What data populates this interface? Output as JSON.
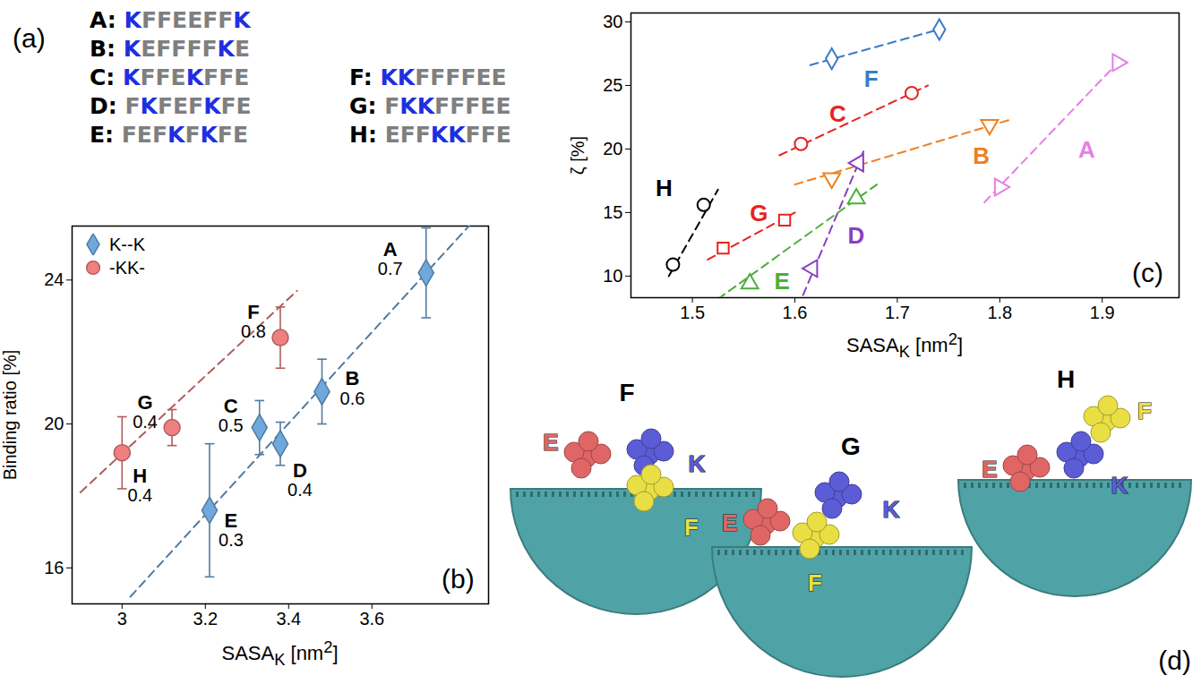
{
  "panel_a": {
    "label": "(a)",
    "highlight": "K",
    "highlight_color": "#1f2fe0",
    "base_color": "#7f7f7f",
    "columns": [
      [
        {
          "label": "A:",
          "sequence": "KFFEEFFK"
        },
        {
          "label": "B:",
          "sequence": "KEFFFFKE"
        },
        {
          "label": "C:",
          "sequence": "KFFEKFFE"
        },
        {
          "label": "D:",
          "sequence": "FKFEFKFE"
        },
        {
          "label": "E:",
          "sequence": "FEFKFKFE"
        }
      ],
      [
        {
          "label": "F:",
          "sequence": "KKFFFFEE"
        },
        {
          "label": "G:",
          "sequence": "FKKFFFEE"
        },
        {
          "label": "H:",
          "sequence": "EFFKKFFE"
        }
      ]
    ]
  },
  "chart_data": [
    {
      "type": "scatter",
      "panel_label": "(b)",
      "xlabel": [
        "SASA",
        {
          "sub": "K"
        },
        " [nm",
        {
          "sup": "2"
        },
        "]"
      ],
      "ylabel": "Binding ratio [%]",
      "xlim": [
        2.88,
        3.88
      ],
      "xticks": [
        3,
        3.2,
        3.4,
        3.6
      ],
      "ylim": [
        15,
        25.5
      ],
      "yticks": [
        16,
        20,
        24
      ],
      "legend": "top-left",
      "series": [
        {
          "name": "K--K",
          "color": "#6fa8dc",
          "marker": "diamond",
          "line_style": "dashed",
          "x": [
            3.21,
            3.33,
            3.38,
            3.48,
            3.73
          ],
          "values": [
            17.6,
            19.9,
            19.45,
            20.9,
            24.2
          ],
          "errors": [
            1.85,
            0.75,
            0.6,
            0.9,
            1.25
          ],
          "point_labels": [
            "E",
            "C",
            "D",
            "B",
            "A"
          ],
          "point_numbers": [
            0.3,
            0.5,
            0.4,
            0.6,
            0.7
          ],
          "fit": {
            "x": [
              3.02,
              3.88
            ],
            "y": [
              15.2,
              26.1
            ]
          }
        },
        {
          "name": "-KK-",
          "color": "#f08080",
          "marker": "circle",
          "line_style": "dashed",
          "x": [
            3.0,
            3.12,
            3.38
          ],
          "values": [
            19.2,
            19.9,
            22.4
          ],
          "errors": [
            1.0,
            0.5,
            0.85
          ],
          "point_labels": [
            "H",
            "G",
            "F"
          ],
          "point_numbers": [
            0.4,
            0.4,
            0.8
          ],
          "fit": {
            "x": [
              2.9,
              3.42
            ],
            "y": [
              18.1,
              23.7
            ]
          }
        }
      ]
    },
    {
      "type": "scatter",
      "panel_label": "(c)",
      "xlabel": [
        "SASA",
        {
          "sub": "K"
        },
        " [nm",
        {
          "sup": "2"
        },
        "]"
      ],
      "ylabel": "ζ [%]",
      "xlim": [
        1.44,
        1.975
      ],
      "xticks": [
        1.5,
        1.6,
        1.7,
        1.8,
        1.9
      ],
      "ylim": [
        8.3,
        30.7
      ],
      "yticks": [
        10,
        15,
        20,
        25,
        30
      ],
      "series": [
        {
          "name": "A",
          "color": "#e67ee6",
          "marker": "triangle-right-open",
          "line_style": "dashed",
          "x": [
            1.8,
            1.915
          ],
          "values": [
            17.0,
            26.8
          ],
          "fit": {
            "x": [
              1.785,
              1.92
            ],
            "y": [
              15.8,
              27.2
            ]
          }
        },
        {
          "name": "B",
          "color": "#f07f1e",
          "marker": "triangle-down-open",
          "line_style": "dashed",
          "x": [
            1.636,
            1.79
          ],
          "values": [
            17.7,
            21.9
          ],
          "fit": {
            "x": [
              1.6,
              1.81
            ],
            "y": [
              17.2,
              22.3
            ]
          }
        },
        {
          "name": "C",
          "color": "#e8231e",
          "marker": "circle-open",
          "line_style": "dashed",
          "x": [
            1.606,
            1.714
          ],
          "values": [
            20.4,
            24.4
          ],
          "fit": {
            "x": [
              1.585,
              1.73
            ],
            "y": [
              19.5,
              25.0
            ]
          }
        },
        {
          "name": "D",
          "color": "#8a3fc0",
          "marker": "triangle-left-open",
          "line_style": "dashed",
          "x": [
            1.617,
            1.662
          ],
          "values": [
            10.6,
            18.9
          ],
          "fit": {
            "x": [
              1.608,
              1.668
            ],
            "y": [
              8.5,
              20.0
            ]
          }
        },
        {
          "name": "E",
          "color": "#4caf3a",
          "marker": "triangle-up-open",
          "line_style": "dashed",
          "x": [
            1.556,
            1.66
          ],
          "values": [
            9.4,
            16.1
          ],
          "fit": {
            "x": [
              1.525,
              1.68
            ],
            "y": [
              8.2,
              17.2
            ]
          }
        },
        {
          "name": "F",
          "color": "#3b7bc8",
          "marker": "diamond-open",
          "line_style": "dashed",
          "x": [
            1.636,
            1.741
          ],
          "values": [
            27.1,
            29.4
          ],
          "fit": {
            "x": [
              1.615,
              1.745
            ],
            "y": [
              26.6,
              29.5
            ]
          }
        },
        {
          "name": "G",
          "color": "#e8231e",
          "marker": "square-open",
          "line_style": "dashed",
          "x": [
            1.53,
            1.59
          ],
          "values": [
            12.2,
            14.4
          ],
          "fit": {
            "x": [
              1.515,
              1.6
            ],
            "y": [
              11.3,
              15.0
            ]
          }
        },
        {
          "name": "H",
          "color": "#000000",
          "marker": "circle-open",
          "line_style": "dashed",
          "x": [
            1.481,
            1.511
          ],
          "values": [
            10.9,
            15.6
          ],
          "fit": {
            "x": [
              1.477,
              1.525
            ],
            "y": [
              10.0,
              16.8
            ]
          }
        }
      ]
    }
  ],
  "panel_d": {
    "label": "(d)",
    "surface_color": "#4fa3a6",
    "snapshots": [
      {
        "title": "F",
        "residues": [
          {
            "name": "E",
            "color": "#e06666"
          },
          {
            "name": "K",
            "color": "#5c5cd6"
          },
          {
            "name": "F",
            "color": "#e9df45"
          }
        ]
      },
      {
        "title": "G",
        "residues": [
          {
            "name": "E",
            "color": "#e06666"
          },
          {
            "name": "K",
            "color": "#5c5cd6"
          },
          {
            "name": "F",
            "color": "#e9df45"
          }
        ]
      },
      {
        "title": "H",
        "residues": [
          {
            "name": "E",
            "color": "#e06666"
          },
          {
            "name": "K",
            "color": "#5c5cd6"
          },
          {
            "name": "F",
            "color": "#e9df45"
          }
        ]
      }
    ]
  }
}
